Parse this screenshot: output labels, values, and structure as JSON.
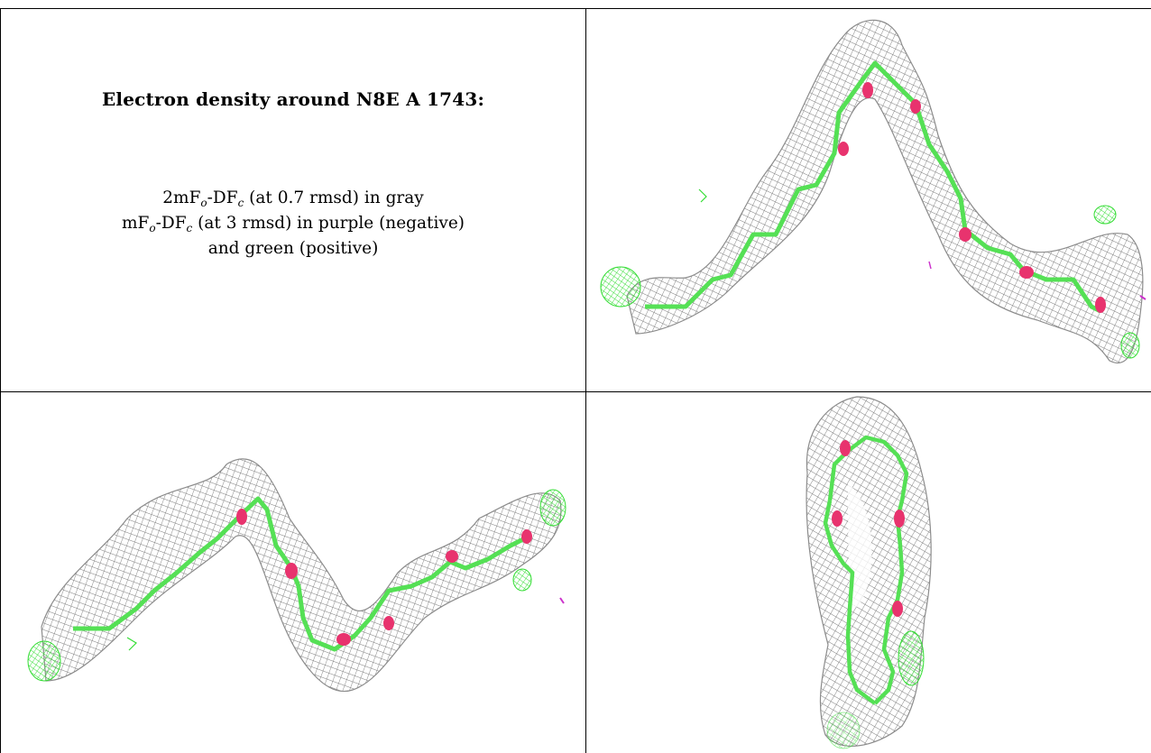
{
  "caption": {
    "title": "Electron density around N8E A 1743:",
    "line1": {
      "lead": "2mF",
      "s1": "o",
      "mid": "-DF",
      "s2": "c",
      "tail": " (at 0.7 rmsd) in gray"
    },
    "line2": {
      "lead": "mF",
      "s1": "o",
      "mid": "-DF",
      "s2": "c",
      "tail": " (at 3 rmsd) in purple (negative)"
    },
    "line3": "and green (positive)"
  },
  "colors": {
    "mesh": "#7a7a7a",
    "carbon_bond": "#55e055",
    "oxygen": "#e8336e",
    "positive_density": "#33dd33",
    "negative_density": "#cc33cc",
    "border": "#000000"
  },
  "panels": [
    {
      "view": "top-right",
      "icon": "density-map-view-1"
    },
    {
      "view": "bottom-left",
      "icon": "density-map-view-2"
    },
    {
      "view": "bottom-right",
      "icon": "density-map-view-3"
    }
  ]
}
